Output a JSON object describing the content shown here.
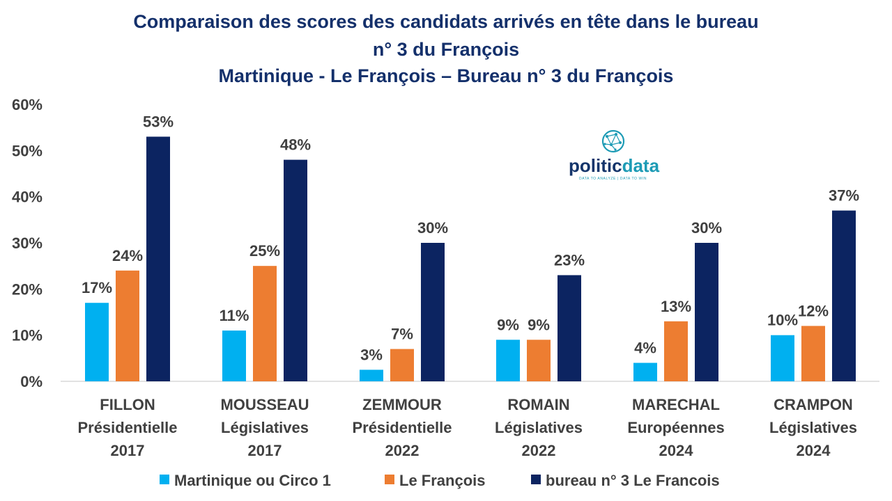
{
  "chart_data": {
    "type": "bar",
    "title": [
      "Comparaison des scores des candidats arrivés en tête dans le bureau",
      "n° 3 du François",
      "Martinique -  Le François – Bureau n° 3 du François"
    ],
    "categories": [
      [
        "FILLON",
        "Présidentielle",
        "2017"
      ],
      [
        "MOUSSEAU",
        "Législatives",
        "2017"
      ],
      [
        "ZEMMOUR",
        "Présidentielle",
        "2022"
      ],
      [
        "ROMAIN",
        "Législatives",
        "2022"
      ],
      [
        "MARECHAL",
        "Européennes",
        "2024"
      ],
      [
        "CRAMPON",
        "Législatives",
        "2024"
      ]
    ],
    "series": [
      {
        "name": "Martinique ou Circo 1",
        "color": "#00b0f0",
        "values": [
          17,
          11,
          2.5,
          9,
          4,
          10
        ],
        "labels": [
          "17%",
          "11%",
          "3%",
          "9%",
          "4%",
          "10%"
        ]
      },
      {
        "name": "Le François",
        "color": "#ed7d31",
        "values": [
          24,
          25,
          7,
          9,
          13,
          12
        ],
        "labels": [
          "24%",
          "25%",
          "7%",
          "9%",
          "13%",
          "12%"
        ]
      },
      {
        "name": "bureau n° 3 Le Francois",
        "color": "#0c2461",
        "values": [
          53,
          48,
          30,
          23,
          30,
          37
        ],
        "labels": [
          "53%",
          "48%",
          "30%",
          "23%",
          "30%",
          "37%"
        ]
      }
    ],
    "ylim": [
      0,
      60
    ],
    "yticks": [
      "0%",
      "10%",
      "20%",
      "30%",
      "40%",
      "50%",
      "60%"
    ],
    "grid": false,
    "legend": "bottom",
    "xlabel": "",
    "ylabel": ""
  },
  "logo": {
    "brand_a": "politic",
    "brand_b": "data",
    "tagline": "DATA TO ANALYZE | DATA TO WIN",
    "icon": "network-globe-icon"
  }
}
